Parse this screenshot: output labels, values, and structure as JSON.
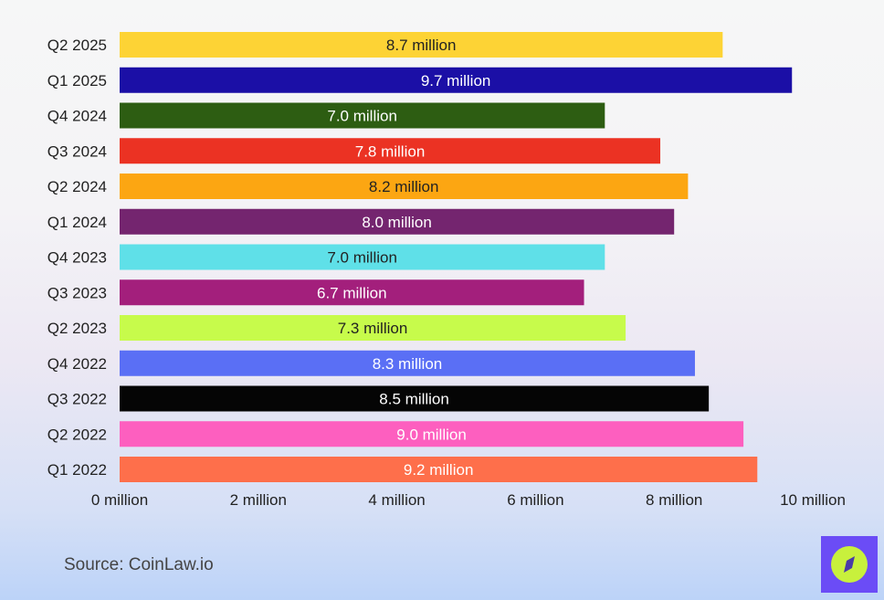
{
  "chart_data": {
    "type": "bar",
    "orientation": "horizontal",
    "title": "",
    "xlabel": "",
    "ylabel": "",
    "xlim": [
      0,
      10
    ],
    "x_ticks": [
      "0 million",
      "2 million",
      "4 million",
      "6 million",
      "8 million",
      "10 million"
    ],
    "x_tick_values": [
      0,
      2,
      4,
      6,
      8,
      10
    ],
    "grid": false,
    "categories": [
      "Q2 2025",
      "Q1 2025",
      "Q4 2024",
      "Q3 2024",
      "Q2 2024",
      "Q1 2024",
      "Q4 2023",
      "Q3 2023",
      "Q2 2023",
      "Q4 2022",
      "Q3 2022",
      "Q2 2022",
      "Q1 2022"
    ],
    "values": [
      8.7,
      9.7,
      7.0,
      7.8,
      8.2,
      8.0,
      7.0,
      6.7,
      7.3,
      8.3,
      8.5,
      9.0,
      9.2
    ],
    "labels": [
      "8.7 million",
      "9.7 million",
      "7.0 million",
      "7.8 million",
      "8.2 million",
      "8.0 million",
      "7.0 million",
      "6.7 million",
      "7.3 million",
      "8.3 million",
      "8.5 million",
      "9.0 million",
      "9.2 million"
    ],
    "colors": [
      "#fdd335",
      "#1b0fa6",
      "#2d5d12",
      "#eb3223",
      "#fca612",
      "#74256f",
      "#5fe0e8",
      "#a31f7c",
      "#c7fb4b",
      "#5a6ff5",
      "#050505",
      "#fd5fbf",
      "#fe6f4b"
    ],
    "label_colors": [
      "#222222",
      "#ffffff",
      "#ffffff",
      "#ffffff",
      "#222222",
      "#ffffff",
      "#222222",
      "#ffffff",
      "#222222",
      "#ffffff",
      "#ffffff",
      "#ffffff",
      "#ffffff"
    ]
  },
  "footer": {
    "source": "Source: CoinLaw.io"
  },
  "brand": {
    "bg": "#6b4cf6",
    "accent": "#c8f03c",
    "icon": "compass-icon"
  }
}
